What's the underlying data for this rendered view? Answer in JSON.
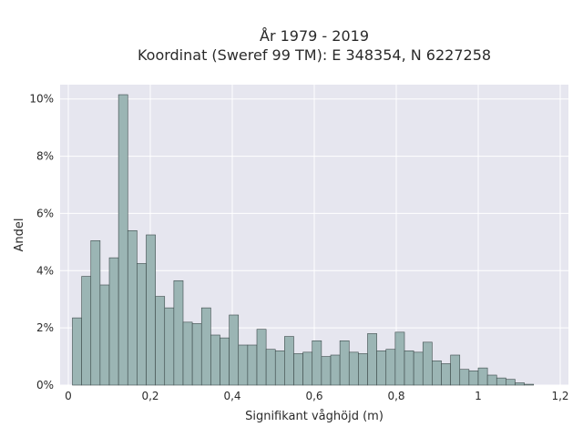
{
  "chart_data": {
    "type": "bar",
    "title": [
      "År 1979 - 2019",
      "Koordinat (Sweref 99 TM): E 348354, N 6227258"
    ],
    "xlabel": "Signifikant våghöjd (m)",
    "ylabel": "Andel",
    "xlim": [
      -0.02,
      1.22
    ],
    "ylim": [
      0,
      10.5
    ],
    "x_ticks": [
      0,
      0.2,
      0.4,
      0.6,
      0.8,
      1,
      1.2
    ],
    "x_tick_labels": [
      "0",
      "0,2",
      "0,4",
      "0,6",
      "0,8",
      "1",
      "1,2"
    ],
    "y_ticks": [
      0,
      2,
      4,
      6,
      8,
      10
    ],
    "y_tick_labels": [
      "0%",
      "2%",
      "4%",
      "6%",
      "8%",
      "10%"
    ],
    "grid": true,
    "bin_start": 0.01,
    "bin_width": 0.0225,
    "values": [
      2.35,
      3.8,
      5.05,
      3.5,
      4.45,
      10.15,
      5.4,
      4.25,
      5.25,
      3.1,
      2.7,
      3.65,
      2.2,
      2.15,
      2.7,
      1.75,
      1.65,
      2.45,
      1.4,
      1.4,
      1.95,
      1.25,
      1.2,
      1.7,
      1.1,
      1.15,
      1.55,
      1.0,
      1.05,
      1.55,
      1.15,
      1.1,
      1.8,
      1.2,
      1.25,
      1.85,
      1.2,
      1.15,
      1.5,
      0.85,
      0.75,
      1.05,
      0.55,
      0.5,
      0.6,
      0.35,
      0.25,
      0.2,
      0.08,
      0.03
    ],
    "bar_color": "#9bb5b4",
    "bar_edge_color": "#3c4a4a",
    "plot_background": "#e6e6ef"
  }
}
